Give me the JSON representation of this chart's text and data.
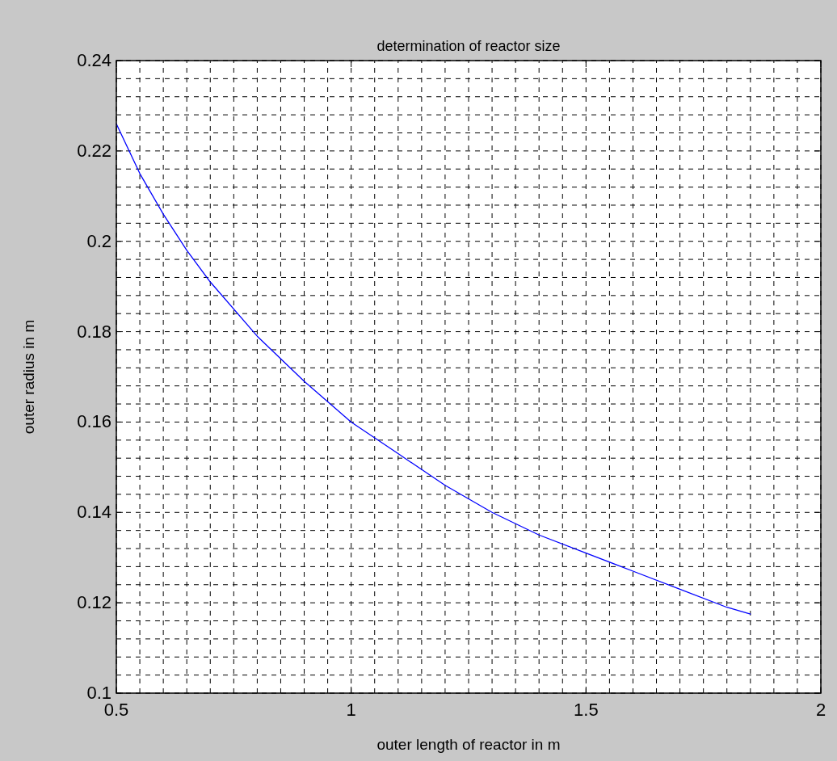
{
  "chart_data": {
    "type": "line",
    "title": "determination of reactor size",
    "xlabel": "outer length of reactor in m",
    "ylabel": "outer radius in m",
    "x": [
      0.5,
      0.55,
      0.6,
      0.65,
      0.7,
      0.8,
      0.9,
      1.0,
      1.1,
      1.2,
      1.3,
      1.4,
      1.5,
      1.6,
      1.7,
      1.8,
      1.85
    ],
    "series": [
      {
        "color": "#0000ff",
        "values": [
          0.226,
          0.215,
          0.206,
          0.198,
          0.191,
          0.179,
          0.169,
          0.16,
          0.153,
          0.146,
          0.14,
          0.135,
          0.131,
          0.127,
          0.123,
          0.119,
          0.1175
        ]
      }
    ],
    "xlim": [
      0.5,
      2
    ],
    "ylim": [
      0.1,
      0.24
    ],
    "xticks": [
      0.5,
      {
        "value": 0.55,
        "label": null
      },
      {
        "value": 0.6,
        "label": null
      },
      {
        "value": 0.65,
        "label": null
      },
      {
        "value": 0.7,
        "label": null
      },
      {
        "value": 0.75,
        "label": null
      },
      {
        "value": 0.8,
        "label": null
      },
      {
        "value": 0.85,
        "label": null
      },
      {
        "value": 0.9,
        "label": null
      },
      {
        "value": 0.95,
        "label": null
      },
      1,
      {
        "value": 1.05,
        "label": null
      },
      {
        "value": 1.1,
        "label": null
      },
      {
        "value": 1.15,
        "label": null
      },
      {
        "value": 1.2,
        "label": null
      },
      {
        "value": 1.25,
        "label": null
      },
      {
        "value": 1.3,
        "label": null
      },
      {
        "value": 1.35,
        "label": null
      },
      {
        "value": 1.4,
        "label": null
      },
      {
        "value": 1.45,
        "label": null
      },
      1.5,
      {
        "value": 1.55,
        "label": null
      },
      {
        "value": 1.6,
        "label": null
      },
      {
        "value": 1.65,
        "label": null
      },
      {
        "value": 1.7,
        "label": null
      },
      {
        "value": 1.75,
        "label": null
      },
      {
        "value": 1.8,
        "label": null
      },
      {
        "value": 1.85,
        "label": null
      },
      {
        "value": 1.9,
        "label": null
      },
      {
        "value": 1.95,
        "label": null
      },
      2
    ],
    "yticks": [
      0.1,
      {
        "value": 0.104,
        "label": null
      },
      {
        "value": 0.108,
        "label": null
      },
      {
        "value": 0.112,
        "label": null
      },
      {
        "value": 0.116,
        "label": null
      },
      0.12,
      {
        "value": 0.124,
        "label": null
      },
      {
        "value": 0.128,
        "label": null
      },
      {
        "value": 0.132,
        "label": null
      },
      {
        "value": 0.136,
        "label": null
      },
      0.14,
      {
        "value": 0.144,
        "label": null
      },
      {
        "value": 0.148,
        "label": null
      },
      {
        "value": 0.152,
        "label": null
      },
      {
        "value": 0.156,
        "label": null
      },
      0.16,
      {
        "value": 0.164,
        "label": null
      },
      {
        "value": 0.168,
        "label": null
      },
      {
        "value": 0.172,
        "label": null
      },
      {
        "value": 0.176,
        "label": null
      },
      0.18,
      {
        "value": 0.184,
        "label": null
      },
      {
        "value": 0.188,
        "label": null
      },
      {
        "value": 0.192,
        "label": null
      },
      {
        "value": 0.196,
        "label": null
      },
      0.2,
      {
        "value": 0.204,
        "label": null
      },
      {
        "value": 0.208,
        "label": null
      },
      {
        "value": 0.212,
        "label": null
      },
      {
        "value": 0.216,
        "label": null
      },
      0.22,
      {
        "value": 0.224,
        "label": null
      },
      {
        "value": 0.228,
        "label": null
      },
      {
        "value": 0.232,
        "label": null
      },
      {
        "value": 0.236,
        "label": null
      },
      0.24
    ],
    "grid": true,
    "line_style": "solid"
  }
}
